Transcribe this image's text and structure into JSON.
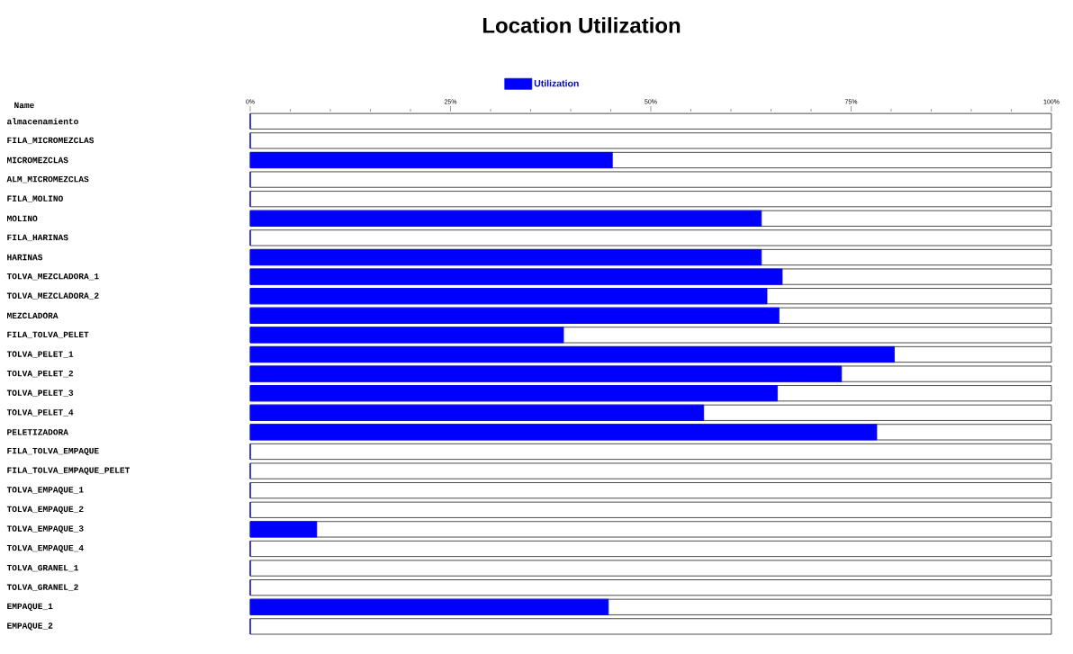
{
  "chart_data": {
    "type": "bar",
    "orientation": "horizontal",
    "title": "Location Utilization",
    "annotations": [
      "Name"
    ],
    "categories": [
      "almacenamiento",
      "FILA_MICROMEZCLAS",
      "MICROMEZCLAS",
      "ALM_MICROMEZCLAS",
      "FILA_MOLINO",
      "MOLINO",
      "FILA_HARINAS",
      "HARINAS",
      "TOLVA_MEZCLADORA_1",
      "TOLVA_MEZCLADORA_2",
      "MEZCLADORA",
      "FILA_TOLVA_PELET",
      "TOLVA_PELET_1",
      "TOLVA_PELET_2",
      "TOLVA_PELET_3",
      "TOLVA_PELET_4",
      "PELETIZADORA",
      "FILA_TOLVA_EMPAQUE",
      "FILA_TOLVA_EMPAQUE_PELET",
      "TOLVA_EMPAQUE_1",
      "TOLVA_EMPAQUE_2",
      "TOLVA_EMPAQUE_3",
      "TOLVA_EMPAQUE_4",
      "TOLVA_GRANEL_1",
      "TOLVA_GRANEL_2",
      "EMPAQUE_1",
      "EMPAQUE_2"
    ],
    "series": [
      {
        "name": "Utilization",
        "color": "#0000ff",
        "values": [
          0,
          0,
          45.2,
          0,
          0,
          63.8,
          0,
          63.8,
          66.4,
          64.5,
          66.0,
          39.1,
          80.4,
          73.8,
          65.8,
          56.6,
          78.2,
          0,
          0,
          0,
          0,
          8.3,
          0,
          0,
          0,
          44.7,
          0
        ]
      }
    ],
    "xlim": [
      0,
      100
    ],
    "xticks": [
      {
        "value": 0,
        "label": "0%"
      },
      {
        "value": 5,
        "label": null
      },
      {
        "value": 10,
        "label": null
      },
      {
        "value": 15,
        "label": null
      },
      {
        "value": 20,
        "label": null
      },
      {
        "value": 25,
        "label": "25%"
      },
      {
        "value": 30,
        "label": null
      },
      {
        "value": 35,
        "label": null
      },
      {
        "value": 40,
        "label": null
      },
      {
        "value": 45,
        "label": null
      },
      {
        "value": 50,
        "label": "50%"
      },
      {
        "value": 55,
        "label": null
      },
      {
        "value": 60,
        "label": null
      },
      {
        "value": 65,
        "label": null
      },
      {
        "value": 70,
        "label": null
      },
      {
        "value": 75,
        "label": "75%"
      },
      {
        "value": 80,
        "label": null
      },
      {
        "value": 85,
        "label": null
      },
      {
        "value": 90,
        "label": null
      },
      {
        "value": 95,
        "label": null
      },
      {
        "value": 100,
        "label": "100%"
      }
    ],
    "legend": "top"
  }
}
